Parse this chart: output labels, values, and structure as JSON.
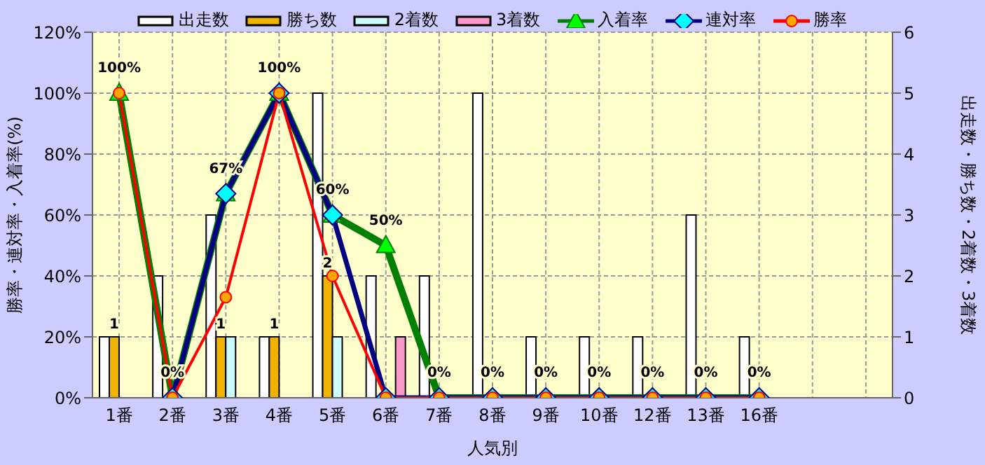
{
  "chart_data": {
    "type": "bar",
    "xlabel": "人気別",
    "ylabel": "勝率・連対率・入着率(%)",
    "y2label": "出走数・勝ち数・2着数・3着数",
    "categories": [
      "1番",
      "2番",
      "3番",
      "4番",
      "5番",
      "6番",
      "7番",
      "8番",
      "9番",
      "10番",
      "12番",
      "13番",
      "16番",
      null,
      null
    ],
    "series": [
      {
        "name": "出走数",
        "axis": "y2",
        "color": "#ffffff",
        "values": [
          1,
          2,
          3,
          1,
          5,
          2,
          2,
          5,
          1,
          1,
          1,
          3,
          1,
          null,
          null
        ]
      },
      {
        "name": "勝ち数",
        "axis": "y2",
        "color": "#f0b400",
        "values": [
          1,
          0,
          1,
          1,
          2,
          0,
          0,
          0,
          0,
          0,
          0,
          0,
          0,
          null,
          null
        ],
        "value_labels": [
          "1",
          null,
          "1",
          "1",
          "2",
          null,
          null,
          null,
          null,
          null,
          null,
          null,
          null,
          null,
          null
        ]
      },
      {
        "name": "2着数",
        "axis": "y2",
        "color": "#ccffff",
        "values": [
          0,
          0,
          1,
          0,
          1,
          0,
          0,
          0,
          0,
          0,
          0,
          0,
          0,
          null,
          null
        ]
      },
      {
        "name": "3着数",
        "axis": "y2",
        "color": "#ff99cc",
        "values": [
          0,
          0,
          0,
          0,
          0,
          1,
          0,
          0,
          0,
          0,
          0,
          0,
          0,
          null,
          null
        ]
      },
      {
        "name": "入着率",
        "type": "line",
        "color": "#008000",
        "marker": "triangle",
        "values": [
          100,
          0,
          67,
          100,
          60,
          50,
          0,
          0,
          0,
          0,
          0,
          0,
          0,
          null,
          null
        ],
        "value_labels": [
          "100%",
          "0%",
          "67%",
          "100%",
          "60%",
          "50%",
          "0%",
          "0%",
          "0%",
          "0%",
          "0%",
          "0%",
          "0%",
          null,
          null
        ]
      },
      {
        "name": "連対率",
        "type": "line",
        "color": "#000080",
        "marker": "diamond",
        "values": [
          null,
          0,
          67,
          100,
          60,
          0,
          0,
          0,
          0,
          0,
          0,
          0,
          0,
          null,
          null
        ]
      },
      {
        "name": "勝率",
        "type": "line",
        "color": "#ff0000",
        "marker": "circle",
        "values": [
          100,
          0,
          33,
          100,
          40,
          0,
          0,
          0,
          0,
          0,
          0,
          0,
          0,
          null,
          null
        ]
      }
    ],
    "ylim": [
      0,
      120
    ],
    "yticks": [
      {
        "value": 0,
        "label": "0%"
      },
      {
        "value": 20,
        "label": "20%"
      },
      {
        "value": 40,
        "label": "40%"
      },
      {
        "value": 60,
        "label": "60%"
      },
      {
        "value": 80,
        "label": "80%"
      },
      {
        "value": 100,
        "label": "100%"
      },
      {
        "value": 120,
        "label": "120%"
      }
    ],
    "y2lim": [
      0,
      6
    ],
    "y2ticks": [
      0,
      1,
      2,
      3,
      4,
      5,
      6
    ],
    "grid": true,
    "legend": "top"
  }
}
